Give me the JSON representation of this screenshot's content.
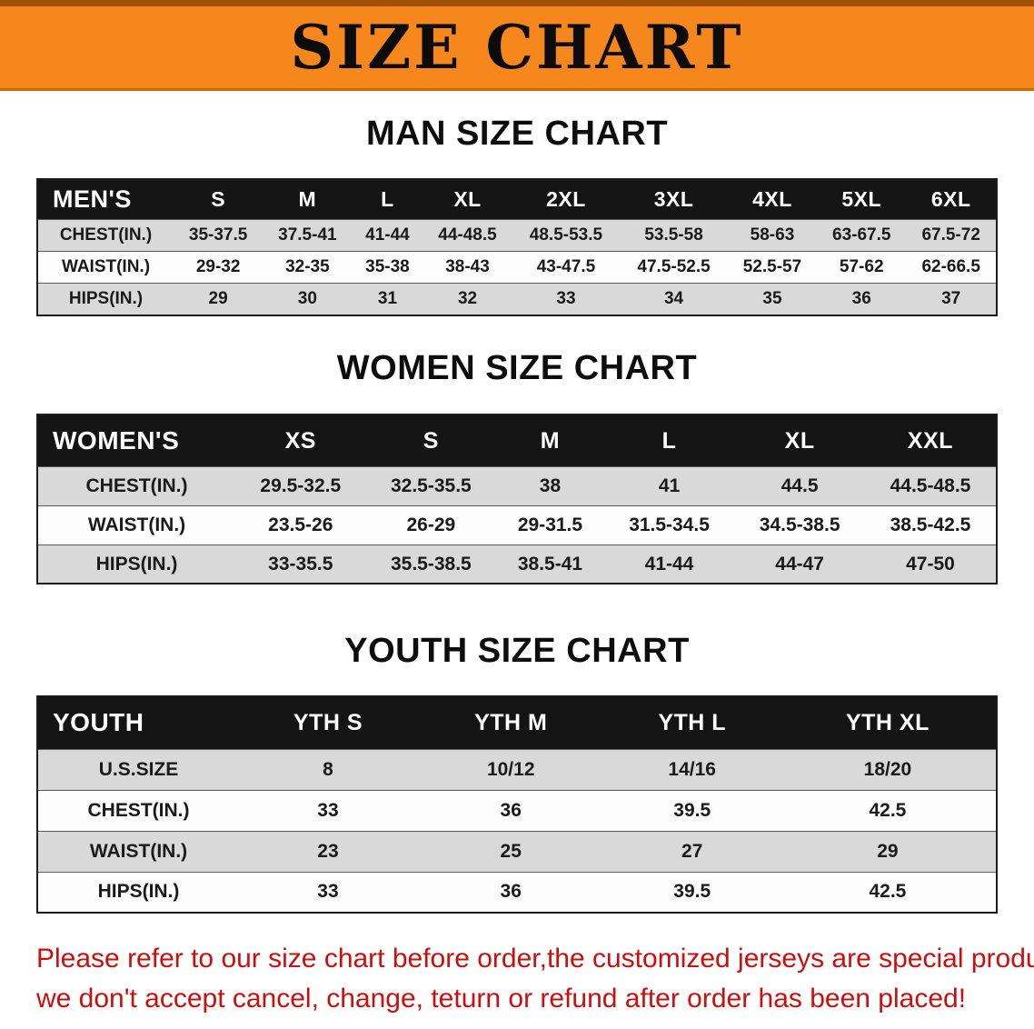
{
  "banner": {
    "title": "SIZE CHART"
  },
  "sections": [
    {
      "heading": "MAN SIZE CHART",
      "table": {
        "header_label": "MEN'S",
        "columns": [
          "S",
          "M",
          "L",
          "XL",
          "2XL",
          "3XL",
          "4XL",
          "5XL",
          "6XL"
        ],
        "rows": [
          {
            "label": "CHEST(IN.)",
            "values": [
              "35-37.5",
              "37.5-41",
              "41-44",
              "44-48.5",
              "48.5-53.5",
              "53.5-58",
              "58-63",
              "63-67.5",
              "67.5-72"
            ]
          },
          {
            "label": "WAIST(IN.)",
            "values": [
              "29-32",
              "32-35",
              "35-38",
              "38-43",
              "43-47.5",
              "47.5-52.5",
              "52.5-57",
              "57-62",
              "62-66.5"
            ]
          },
          {
            "label": "HIPS(IN.)",
            "values": [
              "29",
              "30",
              "31",
              "32",
              "33",
              "34",
              "35",
              "36",
              "37"
            ]
          }
        ]
      }
    },
    {
      "heading": "WOMEN SIZE CHART",
      "table": {
        "header_label": "WOMEN'S",
        "columns": [
          "XS",
          "S",
          "M",
          "L",
          "XL",
          "XXL"
        ],
        "rows": [
          {
            "label": "CHEST(IN.)",
            "values": [
              "29.5-32.5",
              "32.5-35.5",
              "38",
              "41",
              "44.5",
              "44.5-48.5"
            ]
          },
          {
            "label": "WAIST(IN.)",
            "values": [
              "23.5-26",
              "26-29",
              "29-31.5",
              "31.5-34.5",
              "34.5-38.5",
              "38.5-42.5"
            ]
          },
          {
            "label": "HIPS(IN.)",
            "values": [
              "33-35.5",
              "35.5-38.5",
              "38.5-41",
              "41-44",
              "44-47",
              "47-50"
            ]
          }
        ]
      }
    },
    {
      "heading": "YOUTH SIZE CHART",
      "table": {
        "header_label": "YOUTH",
        "columns": [
          "YTH S",
          "YTH M",
          "YTH L",
          "YTH XL"
        ],
        "rows": [
          {
            "label": "U.S.SIZE",
            "values": [
              "8",
              "10/12",
              "14/16",
              "18/20"
            ]
          },
          {
            "label": "CHEST(IN.)",
            "values": [
              "33",
              "36",
              "39.5",
              "42.5"
            ]
          },
          {
            "label": "WAIST(IN.)",
            "values": [
              "23",
              "25",
              "27",
              "29"
            ]
          },
          {
            "label": "HIPS(IN.)",
            "values": [
              "33",
              "36",
              "39.5",
              "42.5"
            ]
          }
        ]
      }
    }
  ],
  "footer": {
    "line1": "Please refer to our size chart before order,the customized jerseys are special products,",
    "line2": "we don't accept cancel, change, teturn or refund after order has been placed!"
  },
  "colors": {
    "banner_orange": "#f6871c",
    "banner_border_dark": "#a0510a",
    "header_black": "#141414",
    "row_gray": "#d9d9d9",
    "notice_red": "#cd0e0e"
  }
}
